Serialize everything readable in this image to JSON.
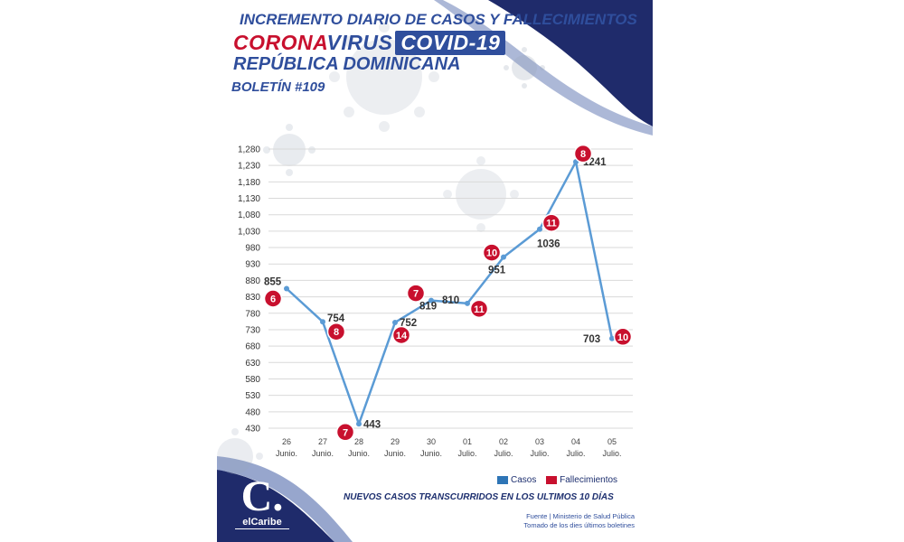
{
  "header": {
    "line1": "INCREMENTO DIARIO DE CASOS Y FALLECIMIENTOS",
    "corona": "CORONA",
    "virus": "VIRUS",
    "covid": "COVID-19",
    "line3": "REPÚBLICA DOMINICANA",
    "bulletin": "BOLETÍN #109"
  },
  "colors": {
    "navy": "#1f2b6b",
    "brand_blue": "#2f4e9c",
    "line_blue": "#5b9bd5",
    "death_red": "#c8102e"
  },
  "chart_data": {
    "type": "line",
    "categories": [
      [
        "26",
        "Junio."
      ],
      [
        "27",
        "Junio."
      ],
      [
        "28",
        "Junio."
      ],
      [
        "29",
        "Junio."
      ],
      [
        "30",
        "Junio."
      ],
      [
        "01",
        "Julio."
      ],
      [
        "02",
        "Julio."
      ],
      [
        "03",
        "Julio."
      ],
      [
        "04",
        "Julio."
      ],
      [
        "05",
        "Julio."
      ]
    ],
    "series": [
      {
        "name": "Casos",
        "values": [
          855,
          754,
          443,
          752,
          819,
          810,
          951,
          1036,
          1241,
          703
        ]
      },
      {
        "name": "Fallecimientos",
        "values": [
          6,
          8,
          7,
          14,
          7,
          11,
          10,
          11,
          8,
          10
        ]
      }
    ],
    "value_labels": [
      "855",
      "754",
      "443",
      "752",
      "819",
      "810",
      "951",
      "1036",
      "1241",
      "703"
    ],
    "yticks": [
      430,
      480,
      530,
      580,
      630,
      680,
      730,
      780,
      830,
      880,
      930,
      980,
      1030,
      1080,
      1130,
      1180,
      1230,
      1280
    ],
    "ytick_labels": [
      "430",
      "480",
      "530",
      "580",
      "630",
      "680",
      "730",
      "780",
      "830",
      "880",
      "930",
      "980",
      "1,030",
      "1,080",
      "1,130",
      "1,180",
      "1,230",
      "1,280"
    ],
    "ylim": [
      430,
      1280
    ],
    "grid": true,
    "legend": "bottom-right"
  },
  "legend": {
    "cases": "Casos",
    "deaths": "Fallecimientos"
  },
  "footer": {
    "title": "NUEVOS CASOS TRANSCURRIDOS EN LOS ULTIMOS 10 DÍAS",
    "source_line1": "Fuente | Ministerio de Salud Pública",
    "source_line2": "Tomado de  los dies últimos boletines",
    "logo_mark": "C.",
    "logo_text": "elCaribe"
  }
}
